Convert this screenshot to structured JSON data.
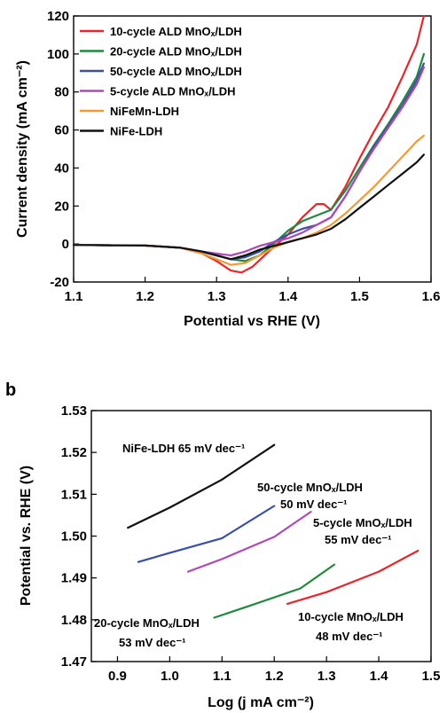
{
  "panel_b_label": "b",
  "chart_data": [
    {
      "type": "line",
      "xlabel": "Potential vs RHE (V)",
      "ylabel": "Current density (mA cm⁻²)",
      "xlim": [
        1.1,
        1.6
      ],
      "ylim": [
        -20,
        120
      ],
      "xticks": [
        "1.1",
        "1.2",
        "1.3",
        "1.4",
        "1.5",
        "1.6"
      ],
      "yticks": [
        "-20",
        "0",
        "20",
        "40",
        "60",
        "80",
        "100",
        "120"
      ],
      "legend": "top-left",
      "series": [
        {
          "name": "10-cycle ALD MnOₓ/LDH",
          "color": "#e8262b",
          "x": [
            1.1,
            1.2,
            1.25,
            1.28,
            1.3,
            1.32,
            1.335,
            1.35,
            1.37,
            1.4,
            1.42,
            1.44,
            1.45,
            1.46,
            1.48,
            1.5,
            1.52,
            1.54,
            1.56,
            1.58,
            1.59
          ],
          "y": [
            -0.5,
            -0.8,
            -2,
            -5,
            -9,
            -14,
            -15,
            -12,
            -5,
            5,
            14,
            21,
            21,
            18,
            30,
            45,
            59,
            72,
            88,
            105,
            120
          ]
        },
        {
          "name": "20-cycle ALD MnOₓ/LDH",
          "color": "#1d8a3c",
          "x": [
            1.1,
            1.2,
            1.25,
            1.28,
            1.3,
            1.32,
            1.34,
            1.36,
            1.38,
            1.4,
            1.42,
            1.44,
            1.46,
            1.48,
            1.5,
            1.52,
            1.54,
            1.56,
            1.58,
            1.59
          ],
          "y": [
            -0.5,
            -0.8,
            -2,
            -4,
            -6,
            -8,
            -9,
            -6,
            0,
            7,
            12,
            15,
            18,
            28,
            40,
            52,
            63,
            75,
            88,
            100
          ]
        },
        {
          "name": "50-cycle ALD MnOₓ/LDH",
          "color": "#3a4fa8",
          "x": [
            1.1,
            1.2,
            1.25,
            1.28,
            1.3,
            1.32,
            1.34,
            1.36,
            1.38,
            1.4,
            1.42,
            1.44,
            1.46,
            1.48,
            1.5,
            1.52,
            1.54,
            1.56,
            1.58,
            1.59
          ],
          "y": [
            -0.5,
            -0.8,
            -2,
            -4,
            -6,
            -8,
            -7,
            -4,
            1,
            5,
            8,
            10,
            14,
            25,
            38,
            51,
            62,
            73,
            86,
            95
          ]
        },
        {
          "name": "5-cycle ALD MnOₓ/LDH",
          "color": "#b048b8",
          "x": [
            1.1,
            1.2,
            1.25,
            1.28,
            1.3,
            1.32,
            1.34,
            1.36,
            1.38,
            1.4,
            1.42,
            1.44,
            1.46,
            1.48,
            1.5,
            1.52,
            1.54,
            1.56,
            1.58,
            1.59
          ],
          "y": [
            -0.5,
            -0.8,
            -2,
            -4,
            -5,
            -6,
            -4,
            -1,
            1,
            3,
            6,
            10,
            14,
            25,
            38,
            50,
            61,
            72,
            84,
            93
          ]
        },
        {
          "name": "NiFeMn-LDH",
          "color": "#f39a38",
          "x": [
            1.1,
            1.2,
            1.25,
            1.28,
            1.3,
            1.32,
            1.34,
            1.36,
            1.38,
            1.4,
            1.42,
            1.44,
            1.46,
            1.48,
            1.5,
            1.52,
            1.54,
            1.56,
            1.58,
            1.59
          ],
          "y": [
            -0.5,
            -0.8,
            -2,
            -5,
            -8,
            -11,
            -10,
            -6,
            -2,
            1,
            3,
            6,
            10,
            16,
            23,
            30,
            38,
            46,
            54,
            57
          ]
        },
        {
          "name": "NiFe-LDH",
          "color": "#111111",
          "x": [
            1.1,
            1.2,
            1.25,
            1.28,
            1.3,
            1.32,
            1.34,
            1.36,
            1.38,
            1.4,
            1.42,
            1.44,
            1.46,
            1.48,
            1.5,
            1.52,
            1.54,
            1.56,
            1.58,
            1.59
          ],
          "y": [
            -0.5,
            -0.8,
            -2,
            -4,
            -6,
            -8,
            -6,
            -3,
            -1,
            1,
            3,
            5,
            8,
            13,
            19,
            25,
            31,
            37,
            43,
            47
          ]
        }
      ]
    },
    {
      "type": "line",
      "xlabel": "Log (j mA cm⁻²)",
      "ylabel": "Potential vs. RHE (V)",
      "xlim": [
        0.85,
        1.5
      ],
      "ylim": [
        1.47,
        1.53
      ],
      "xticks": [
        "0.9",
        "1.0",
        "1.1",
        "1.2",
        "1.3",
        "1.4",
        "1.5"
      ],
      "yticks": [
        "1.47",
        "1.48",
        "1.49",
        "1.50",
        "1.51",
        "1.52",
        "1.53"
      ],
      "series": [
        {
          "color": "#111111",
          "x": [
            0.92,
            1.0,
            1.1,
            1.2
          ],
          "y": [
            1.502,
            1.5068,
            1.5135,
            1.5218
          ]
        },
        {
          "color": "#3a4fa8",
          "x": [
            0.94,
            1.0,
            1.1,
            1.2
          ],
          "y": [
            1.4938,
            1.496,
            1.4995,
            1.5072
          ]
        },
        {
          "color": "#b048b8",
          "x": [
            1.035,
            1.1,
            1.2,
            1.27
          ],
          "y": [
            1.4915,
            1.4945,
            1.4998,
            1.5058
          ]
        },
        {
          "color": "#1d8a3c",
          "x": [
            1.085,
            1.15,
            1.25,
            1.315
          ],
          "y": [
            1.4805,
            1.4832,
            1.4875,
            1.4932
          ]
        },
        {
          "color": "#e8262b",
          "x": [
            1.225,
            1.3,
            1.4,
            1.475
          ],
          "y": [
            1.4838,
            1.4866,
            1.4915,
            1.4965
          ]
        }
      ],
      "annotations": [
        {
          "lines": [
            "NiFe-LDH  65 mV dec⁻¹"
          ]
        },
        {
          "lines": [
            "50-cycle MnOₓ/LDH",
            "50 mV dec⁻¹"
          ]
        },
        {
          "lines": [
            "5-cycle MnOₓ/LDH",
            "55 mV dec⁻¹"
          ]
        },
        {
          "lines": [
            "20-cycle MnOₓ/LDH",
            "53 mV dec⁻¹"
          ]
        },
        {
          "lines": [
            "10-cycle MnOₓ/LDH",
            "48 mV dec⁻¹"
          ]
        }
      ]
    }
  ]
}
